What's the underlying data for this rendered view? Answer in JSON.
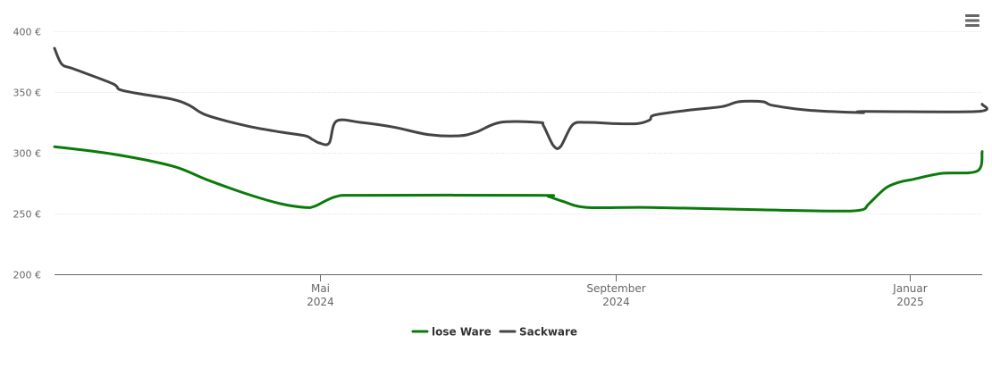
{
  "chart_data": {
    "type": "line",
    "y_ticks": [
      "200 €",
      "250 €",
      "300 €",
      "350 €",
      "400 €"
    ],
    "y_tick_values": [
      200,
      250,
      300,
      350,
      400
    ],
    "ylim": [
      200,
      400
    ],
    "x_ticks": [
      {
        "date": "2024-05-01",
        "line1": "Mai",
        "line2": "2024"
      },
      {
        "date": "2024-09-01",
        "line1": "September",
        "line2": "2024"
      },
      {
        "date": "2025-01-01",
        "line1": "Januar",
        "line2": "2025"
      }
    ],
    "xlim": [
      "2024-01-12",
      "2025-01-31"
    ],
    "grid": true,
    "legend_position": "bottom-center",
    "series": [
      {
        "name": "lose Ware",
        "color": "#0a7a0a",
        "points": [
          [
            "2024-01-12",
            305
          ],
          [
            "2024-02-05",
            299
          ],
          [
            "2024-03-01",
            289
          ],
          [
            "2024-03-15",
            278
          ],
          [
            "2024-04-01",
            266
          ],
          [
            "2024-04-15",
            258
          ],
          [
            "2024-04-25",
            255
          ],
          [
            "2024-04-29",
            256
          ],
          [
            "2024-05-08",
            264
          ],
          [
            "2024-05-20",
            265
          ],
          [
            "2024-07-31",
            265
          ],
          [
            "2024-08-04",
            264
          ],
          [
            "2024-08-10",
            260
          ],
          [
            "2024-08-20",
            255
          ],
          [
            "2024-09-15",
            255
          ],
          [
            "2024-11-01",
            253
          ],
          [
            "2024-12-01",
            252
          ],
          [
            "2024-12-12",
            253
          ],
          [
            "2024-12-15",
            258
          ],
          [
            "2024-12-22",
            271
          ],
          [
            "2024-12-28",
            276
          ],
          [
            "2025-01-02",
            278
          ],
          [
            "2025-01-14",
            283
          ],
          [
            "2025-01-29",
            285
          ],
          [
            "2025-01-31",
            301
          ]
        ]
      },
      {
        "name": "Sackware",
        "color": "#444444",
        "points": [
          [
            "2024-01-12",
            386
          ],
          [
            "2024-01-15",
            373
          ],
          [
            "2024-01-20",
            369
          ],
          [
            "2024-02-05",
            357
          ],
          [
            "2024-02-08",
            352
          ],
          [
            "2024-02-15",
            349
          ],
          [
            "2024-03-01",
            344
          ],
          [
            "2024-03-08",
            339
          ],
          [
            "2024-03-15",
            331
          ],
          [
            "2024-04-01",
            322
          ],
          [
            "2024-04-15",
            317
          ],
          [
            "2024-04-25",
            314
          ],
          [
            "2024-04-28",
            311
          ],
          [
            "2024-05-01",
            308
          ],
          [
            "2024-05-05",
            308
          ],
          [
            "2024-05-08",
            326
          ],
          [
            "2024-05-18",
            325
          ],
          [
            "2024-06-01",
            321
          ],
          [
            "2024-06-15",
            315
          ],
          [
            "2024-06-28",
            314
          ],
          [
            "2024-07-05",
            317
          ],
          [
            "2024-07-15",
            325
          ],
          [
            "2024-07-31",
            325
          ],
          [
            "2024-08-02",
            322
          ],
          [
            "2024-08-06",
            306
          ],
          [
            "2024-08-09",
            305
          ],
          [
            "2024-08-14",
            323
          ],
          [
            "2024-08-20",
            325
          ],
          [
            "2024-09-01",
            324
          ],
          [
            "2024-09-10",
            324
          ],
          [
            "2024-09-15",
            327
          ],
          [
            "2024-09-17",
            331
          ],
          [
            "2024-10-01",
            335
          ],
          [
            "2024-10-15",
            338
          ],
          [
            "2024-10-22",
            342
          ],
          [
            "2024-11-01",
            342
          ],
          [
            "2024-11-05",
            339
          ],
          [
            "2024-11-20",
            335
          ],
          [
            "2024-12-12",
            333
          ],
          [
            "2024-12-13",
            334
          ],
          [
            "2025-01-29",
            334
          ],
          [
            "2025-01-31",
            340
          ]
        ]
      }
    ]
  },
  "toolbar": {
    "menu_icon": "hamburger-menu-icon",
    "menu_color": "#666666"
  },
  "axis_colors": {
    "grid": "#e6e6e6",
    "axis_line": "#666666"
  }
}
